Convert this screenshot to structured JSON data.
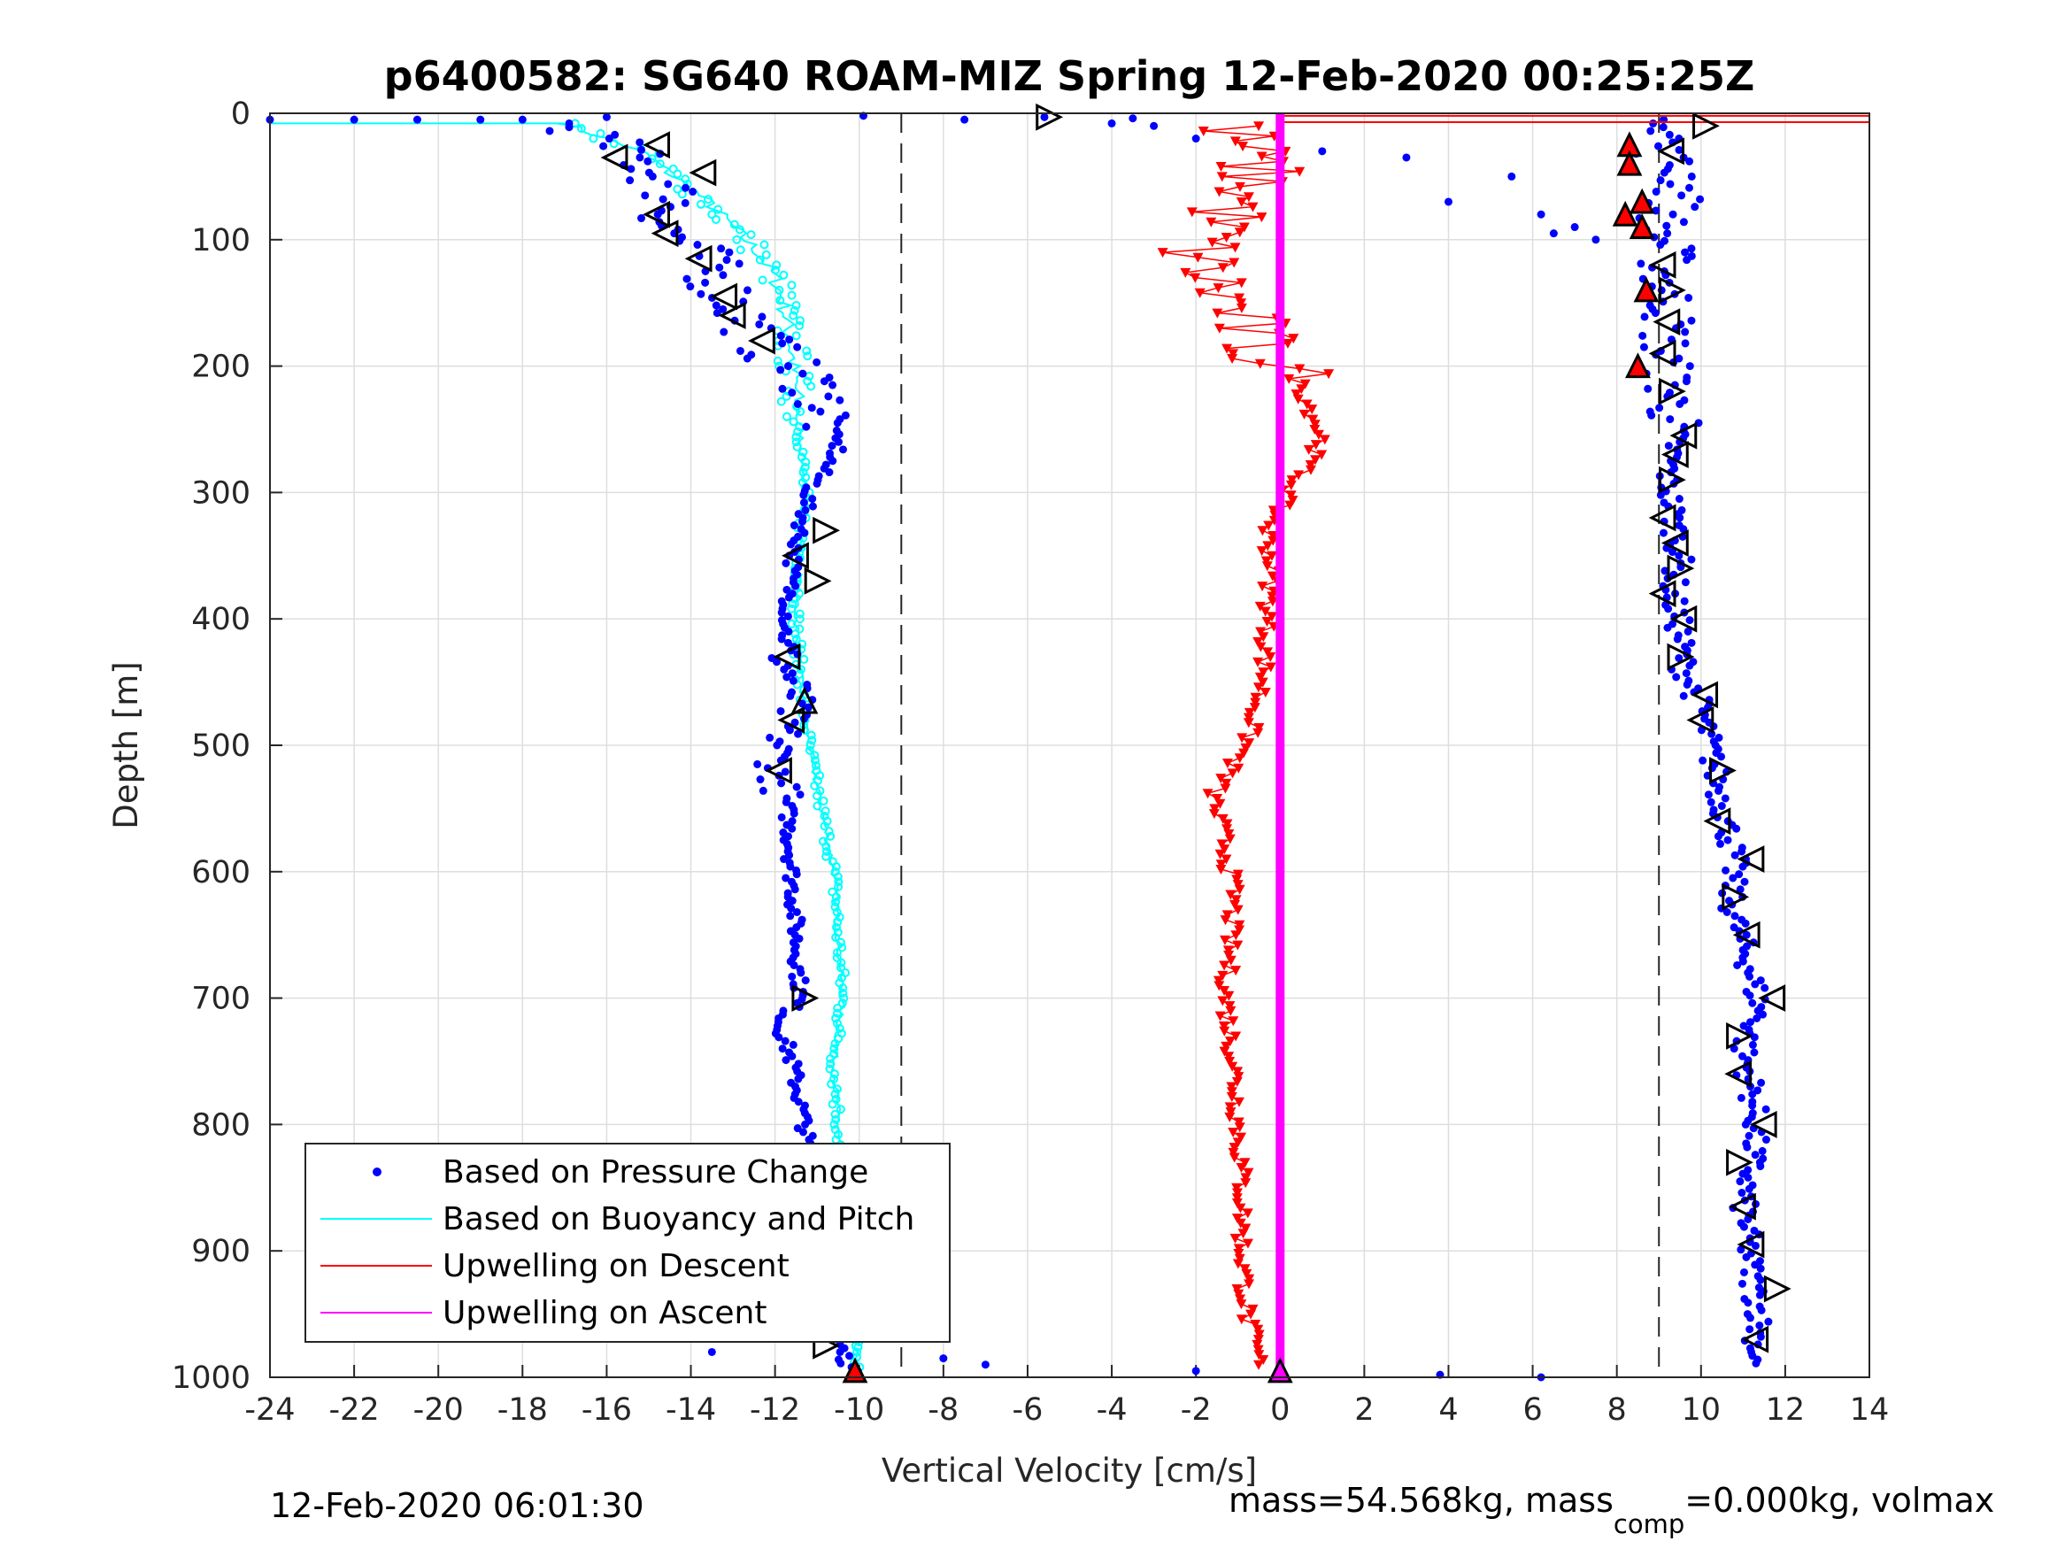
{
  "chart_data": {
    "type": "scatter",
    "title": "p6400582: SG640 ROAM-MIZ Spring 12-Feb-2020 00:25:25Z",
    "xlabel": "Vertical Velocity [cm/s]",
    "ylabel": "Depth [m]",
    "xlim": [
      -24,
      14
    ],
    "ylim": [
      0,
      1000
    ],
    "y_reversed": true,
    "grid": true,
    "xticks": [
      "-24",
      "-22",
      "-20",
      "-18",
      "-16",
      "-14",
      "-12",
      "-10",
      "-8",
      "-6",
      "-4",
      "-2",
      "0",
      "2",
      "4",
      "6",
      "8",
      "10",
      "12",
      "14"
    ],
    "yticks": [
      "0",
      "100",
      "200",
      "300",
      "400",
      "500",
      "600",
      "700",
      "800",
      "900",
      "1000"
    ],
    "legend_position": "bottom-left",
    "vlines": [
      {
        "x": -9,
        "style": "dashed"
      },
      {
        "x": 9,
        "style": "dashed"
      }
    ],
    "series": [
      {
        "name": "Based on Pressure Change",
        "color": "#0000ff",
        "depth": [
          8,
          30,
          50,
          70,
          90,
          110,
          130,
          150,
          170,
          190,
          210,
          230,
          250,
          265,
          280,
          300,
          330,
          360,
          400,
          430,
          460,
          480,
          500,
          520,
          550,
          600,
          650,
          700,
          720,
          750,
          800,
          850,
          900,
          950,
          980,
          995
        ],
        "velocity": [
          -17,
          -15.5,
          -14.8,
          -14.3,
          -14.6,
          -13.8,
          -13.4,
          -13,
          -12.5,
          -12.1,
          -11.2,
          -10.8,
          -10.7,
          -10.5,
          -10.8,
          -11.2,
          -11.4,
          -11.6,
          -11.7,
          -11.8,
          -11.5,
          -11.7,
          -11.9,
          -12,
          -11.7,
          -11.6,
          -11.5,
          -11.4,
          -11.9,
          -11.6,
          -11.3,
          -11.1,
          -11,
          -10.7,
          -10.4,
          -10.2
        ]
      },
      {
        "name": "Based on Buoyancy and Pitch",
        "color": "#00ffff",
        "depth": [
          8,
          30,
          50,
          70,
          90,
          110,
          130,
          150,
          170,
          190,
          220,
          250,
          300,
          350,
          400,
          450,
          500,
          550,
          600,
          650,
          700,
          750,
          800,
          850,
          900,
          950,
          980,
          995
        ],
        "velocity": [
          -17,
          -15.2,
          -14.4,
          -13.6,
          -13,
          -12.4,
          -12,
          -11.8,
          -11.7,
          -11.6,
          -11.5,
          -11.4,
          -11.3,
          -11.4,
          -11.5,
          -11.4,
          -11.2,
          -10.9,
          -10.6,
          -10.5,
          -10.4,
          -10.6,
          -10.5,
          -10.4,
          -10.3,
          -10.2,
          -10.1,
          -10
        ]
      },
      {
        "name": "Upwelling on Descent",
        "color": "#ff0000",
        "depth": [
          10,
          30,
          50,
          70,
          90,
          110,
          130,
          150,
          170,
          190,
          210,
          240,
          260,
          280,
          300,
          330,
          360,
          400,
          450,
          500,
          540,
          580,
          620,
          660,
          700,
          750,
          800,
          850,
          900,
          950,
          990
        ],
        "velocity": [
          -1.2,
          -0.8,
          -0.5,
          -1,
          -1.5,
          -2,
          -1.7,
          -1.2,
          -0.8,
          -0.5,
          0.4,
          0.8,
          1,
          0.6,
          0.2,
          -0.3,
          -0.2,
          -0.3,
          -0.4,
          -0.8,
          -1.6,
          -1.3,
          -1.1,
          -1.2,
          -1.3,
          -1.1,
          -1,
          -0.9,
          -0.9,
          -0.8,
          -0.5
        ]
      },
      {
        "name": "Upwelling on Ascent",
        "color": "#ff00ff",
        "depth": [
          0,
          1000
        ],
        "velocity": [
          0,
          0
        ]
      }
    ],
    "ascent_velocity": {
      "depth": [
        10,
        30,
        50,
        70,
        90,
        110,
        130,
        150,
        170,
        190,
        210,
        230,
        250,
        270,
        290,
        310,
        330,
        350,
        380,
        410,
        440,
        470,
        500,
        530,
        560,
        590,
        620,
        650,
        680,
        710,
        740,
        770,
        800,
        830,
        860,
        890,
        920,
        950,
        980
      ],
      "velocity": [
        9.5,
        9,
        9.6,
        9.4,
        9,
        9.2,
        9.1,
        9.3,
        9.2,
        9.1,
        9.2,
        9.3,
        9.4,
        9.3,
        9.2,
        9.3,
        9.4,
        9.5,
        9.3,
        9.5,
        9.6,
        10,
        10.2,
        10.4,
        10.6,
        10.8,
        10.7,
        10.9,
        11.2,
        11.4,
        11,
        11.2,
        11.3,
        11.2,
        11,
        11.1,
        11.2,
        11.4,
        11.3
      ]
    },
    "markers_left": {
      "shapes": [
        "tri-left",
        "tri-left",
        "tri-left",
        "tri-left",
        "tri-left",
        "tri-left",
        "tri-left",
        "tri-left",
        "tri-left",
        "tri-right",
        "tri-left",
        "tri-right",
        "tri-left",
        "tri-up",
        "tri-left",
        "tri-left",
        "tri-right",
        "tri-right"
      ],
      "depth": [
        25,
        35,
        47,
        80,
        95,
        115,
        145,
        160,
        180,
        330,
        350,
        370,
        430,
        465,
        480,
        520,
        700,
        975
      ],
      "velocity": [
        -14.8,
        -15.8,
        -13.7,
        -14.8,
        -14.6,
        -13.8,
        -13.2,
        -13,
        -12.3,
        -10.8,
        -11.5,
        -11,
        -11.7,
        -11.3,
        -11.6,
        -11.9,
        -11.3,
        -10.8
      ]
    },
    "markers_right": {
      "depth": [
        10,
        30,
        120,
        140,
        165,
        190,
        220,
        255,
        270,
        290,
        320,
        340,
        360,
        380,
        400,
        430,
        460,
        480,
        520,
        560,
        590,
        620,
        650,
        700,
        730,
        760,
        800,
        830,
        865,
        895,
        930,
        970
      ],
      "velocity": [
        10.1,
        9.3,
        9.1,
        9.3,
        9.2,
        9.1,
        9.3,
        9.6,
        9.4,
        9.3,
        9.1,
        9.4,
        9.5,
        9.1,
        9.6,
        9.5,
        10.1,
        10,
        10.5,
        10.4,
        11.2,
        10.8,
        11.1,
        11.7,
        10.9,
        10.9,
        11.5,
        10.9,
        11,
        11.2,
        11.8,
        11.3
      ]
    },
    "red_triangles": {
      "depth": [
        25,
        40,
        70,
        80,
        90,
        140,
        200,
        995
      ],
      "velocity": [
        8.3,
        8.3,
        8.6,
        8.2,
        8.6,
        8.7,
        8.5,
        -10.1
      ]
    },
    "magenta_bottom_marker": {
      "depth": 995,
      "velocity": 0
    },
    "outliers": {
      "depth": [
        5,
        5,
        5,
        5,
        5,
        3,
        2,
        5,
        3,
        4,
        8,
        10,
        20,
        30,
        35,
        50,
        70,
        80,
        90,
        95,
        100,
        980,
        985,
        990,
        995,
        998,
        1000
      ],
      "velocity": [
        -24,
        -22,
        -20.5,
        -19,
        -18,
        -16,
        -9.9,
        -7.5,
        -5.6,
        -3.5,
        -4,
        -3,
        -2,
        1,
        3,
        5.5,
        4,
        6.2,
        7,
        6.5,
        7.5,
        -13.5,
        -8,
        -7,
        -2,
        3.8,
        6.2
      ]
    }
  },
  "footer_left": "12-Feb-2020 06:01:30",
  "footer_right": "mass=54.568kg, mass",
  "footer_right_sub": "comp",
  "footer_right_tail": "=0.000kg, volmax"
}
